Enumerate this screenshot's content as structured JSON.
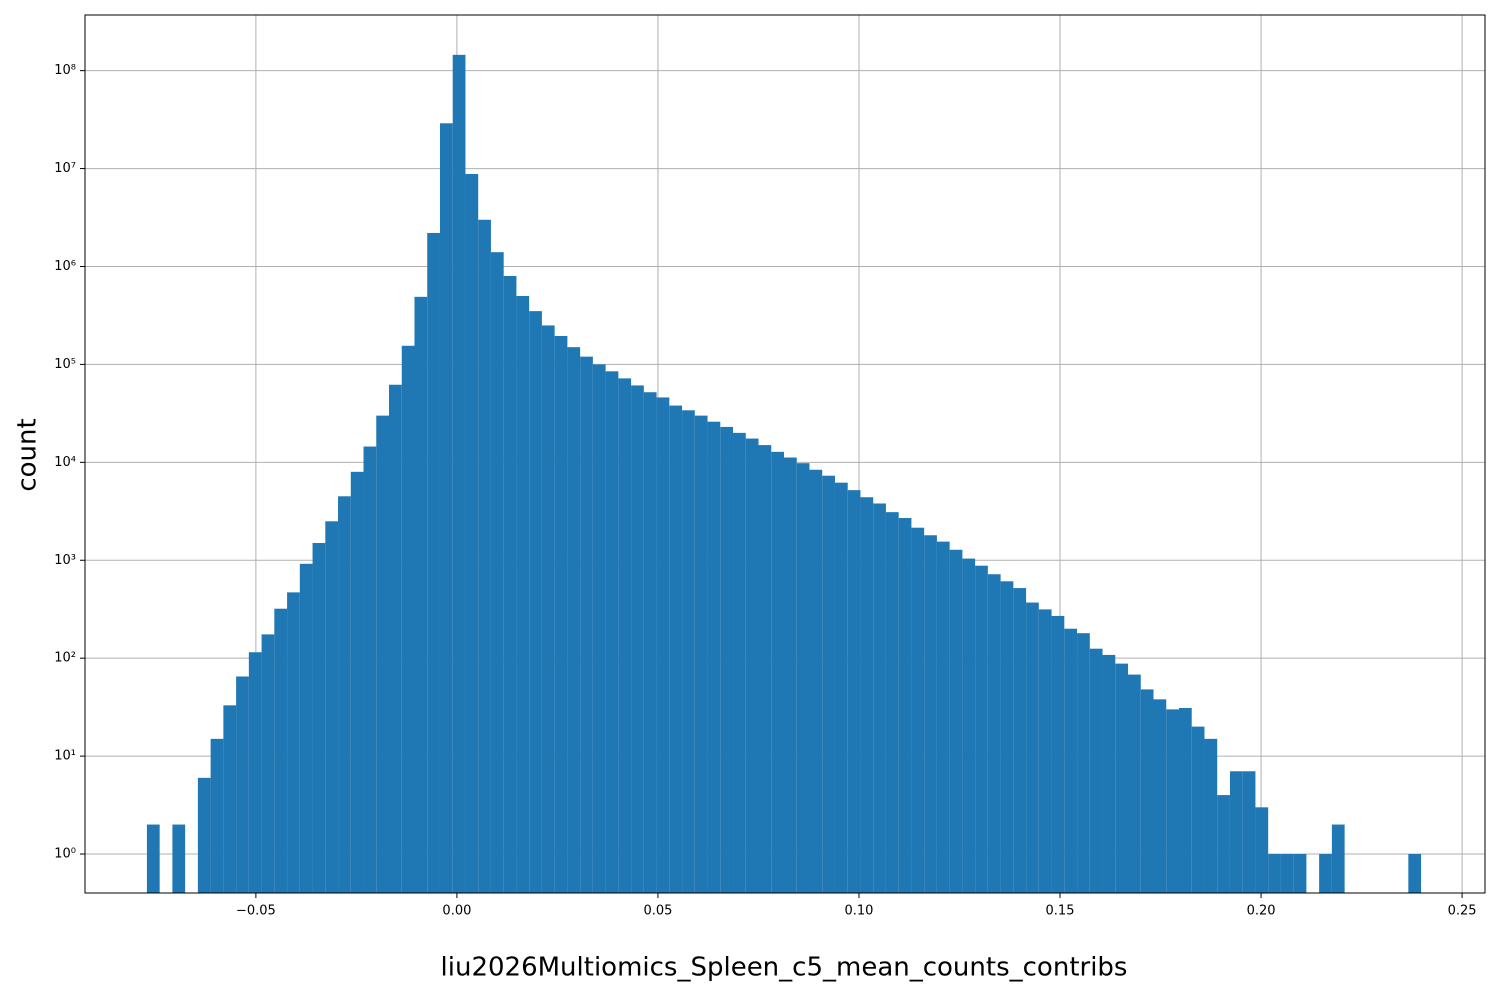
{
  "chart_data": {
    "type": "histogram",
    "xlabel": "liu2026Multiomics_Spleen_c5_mean_counts_contribs",
    "ylabel": "count",
    "color": "#1f77b4",
    "log_y": true,
    "grid": true,
    "bins": [
      -0.0771,
      -0.073931,
      -0.070762,
      -0.067593,
      -0.064424,
      -0.061255,
      -0.058086,
      -0.054917,
      -0.051748,
      -0.048579,
      -0.04541,
      -0.042241,
      -0.039072,
      -0.035903,
      -0.032734,
      -0.029565,
      -0.026396,
      -0.023227,
      -0.020058,
      -0.016889,
      -0.01372,
      -0.010551,
      -0.007382,
      -0.004213,
      -0.001044,
      0.002125,
      0.005294,
      0.008463,
      0.011632,
      0.014801,
      0.01797,
      0.021139,
      0.024308,
      0.027477,
      0.030646,
      0.033815,
      0.036984,
      0.040153,
      0.043322,
      0.046491,
      0.04966,
      0.052829,
      0.055998,
      0.059167,
      0.062336,
      0.065505,
      0.068674,
      0.071843,
      0.075012,
      0.078181,
      0.08135,
      0.084519,
      0.087688,
      0.090857,
      0.094026,
      0.097195,
      0.100364,
      0.103533,
      0.106702,
      0.109871,
      0.11304,
      0.116209,
      0.119378,
      0.122547,
      0.125716,
      0.128885,
      0.132054,
      0.135223,
      0.138392,
      0.141561,
      0.14473,
      0.147899,
      0.151068,
      0.154237,
      0.157406,
      0.160575,
      0.163744,
      0.166913,
      0.170082,
      0.173251,
      0.17642,
      0.179589,
      0.182758,
      0.185927,
      0.189096,
      0.192265,
      0.195434,
      0.198603,
      0.201772,
      0.204941,
      0.20811,
      0.211279,
      0.214448,
      0.217617,
      0.220786,
      0.223955,
      0.227124,
      0.230293,
      0.233462,
      0.236631,
      0.2398
    ],
    "counts": [
      2,
      0,
      2,
      0,
      6,
      15,
      33,
      65,
      115,
      175,
      320,
      470,
      920,
      1500,
      2500,
      4500,
      8000,
      14500,
      30000,
      62000,
      155000,
      490000,
      2200000,
      29000000,
      145000000,
      8800000,
      3000000,
      1400000,
      800000,
      500000,
      350000,
      250000,
      195000,
      150000,
      120000,
      100000,
      85000,
      72000,
      61000,
      52000,
      46000,
      38000,
      34000,
      30000,
      26000,
      23000,
      20000,
      17500,
      15000,
      12800,
      11200,
      9800,
      8400,
      7300,
      6200,
      5200,
      4400,
      3800,
      3100,
      2700,
      2150,
      1800,
      1550,
      1280,
      1040,
      880,
      720,
      610,
      520,
      370,
      315,
      270,
      200,
      180,
      125,
      108,
      88,
      68,
      48,
      38,
      30,
      31,
      20,
      15,
      4,
      7,
      7,
      3,
      1,
      1,
      1,
      0,
      1,
      2,
      0,
      0,
      0,
      0,
      0,
      1
    ],
    "xlim": [
      -0.0925,
      0.2557
    ],
    "ylim": [
      0.4,
      370000000
    ],
    "xticks": [
      {
        "value": -0.05,
        "label": "−0.05"
      },
      {
        "value": 0,
        "label": "0.00"
      },
      0.05,
      {
        "value": 0.1,
        "label": "0.10"
      },
      0.15,
      {
        "value": 0.2,
        "label": "0.20"
      },
      0.25
    ],
    "yticks": [
      {
        "value": 1,
        "label": "10⁰"
      },
      {
        "value": 10,
        "label": "10¹"
      },
      {
        "value": 100,
        "label": "10²"
      },
      {
        "value": 1000,
        "label": "10³"
      },
      {
        "value": 10000,
        "label": "10⁴"
      },
      {
        "value": 100000,
        "label": "10⁵"
      },
      {
        "value": 1000000,
        "label": "10⁶"
      },
      {
        "value": 10000000,
        "label": "10⁷"
      },
      {
        "value": 100000000,
        "label": "10⁸"
      }
    ]
  }
}
